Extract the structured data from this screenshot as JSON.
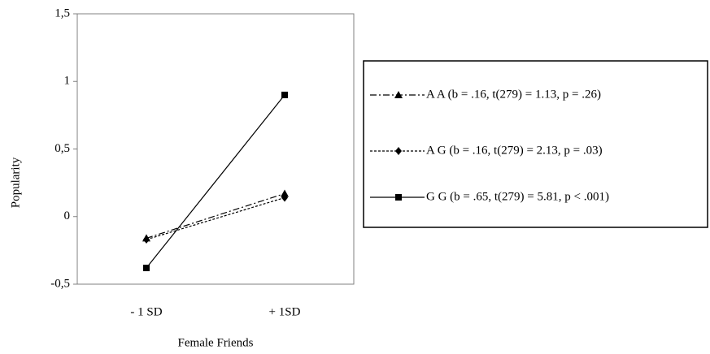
{
  "chart_data": {
    "type": "line",
    "xlabel": "Female Friends",
    "ylabel": "Popularity",
    "categories": [
      "- 1 SD",
      "+ 1SD"
    ],
    "ylim": [
      -0.5,
      1.5
    ],
    "yticks": [
      {
        "value": 1.5,
        "label": "1,5"
      },
      1,
      {
        "value": 0.5,
        "label": "0,5"
      },
      0,
      {
        "value": -0.5,
        "label": "-0,5"
      }
    ],
    "series": [
      {
        "name": "A A (b = .16, t(279) = 1.13, p = .26)",
        "color": "#000000",
        "dash": "dashdot",
        "marker": "triangle",
        "values": [
          -0.16,
          0.17
        ]
      },
      {
        "name": "A G (b = .16, t(279) = 2.13, p = .03)",
        "color": "#000000",
        "dash": "dashed",
        "marker": "diamond",
        "values": [
          -0.17,
          0.14
        ]
      },
      {
        "name": "G G (b = .65, t(279) = 5.81, p < .001)",
        "color": "#000000",
        "dash": "solid",
        "marker": "square",
        "values": [
          -0.38,
          0.9
        ]
      }
    ]
  }
}
